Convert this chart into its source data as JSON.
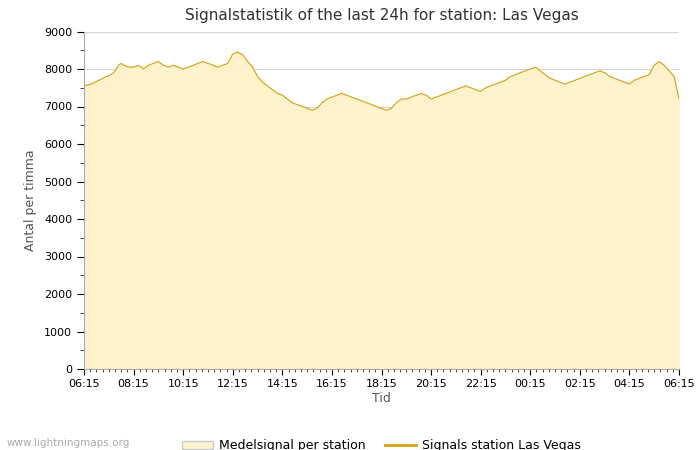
{
  "title": "Signalstatistik of the last 24h for station: Las Vegas",
  "ylabel": "Antal per timma",
  "xlabel": "Tid",
  "watermark": "www.lightningmaps.org",
  "legend_labels": [
    "Medelsignal per station",
    "Signals station Las Vegas"
  ],
  "fill_color": "#FFF3CC",
  "line_color": "#D4A017",
  "grid_color": "#CCCCCC",
  "bg_color": "#FFFFFF",
  "ylim": [
    0,
    9000
  ],
  "yticks": [
    0,
    1000,
    2000,
    3000,
    4000,
    5000,
    6000,
    7000,
    8000,
    9000
  ],
  "x_labels": [
    "06:15",
    "08:15",
    "10:15",
    "12:15",
    "14:15",
    "16:15",
    "18:15",
    "20:15",
    "22:15",
    "00:15",
    "02:15",
    "04:15",
    "06:15"
  ],
  "x_values": [
    0,
    2,
    4,
    6,
    8,
    10,
    12,
    14,
    16,
    18,
    20,
    22,
    24
  ],
  "signal_data": [
    [
      0,
      7550
    ],
    [
      0.3,
      7600
    ],
    [
      0.6,
      7700
    ],
    [
      0.9,
      7800
    ],
    [
      1.0,
      7820
    ],
    [
      1.2,
      7900
    ],
    [
      1.4,
      8100
    ],
    [
      1.5,
      8150
    ],
    [
      1.6,
      8100
    ],
    [
      1.8,
      8050
    ],
    [
      2.0,
      8050
    ],
    [
      2.2,
      8100
    ],
    [
      2.4,
      8000
    ],
    [
      2.6,
      8100
    ],
    [
      2.8,
      8150
    ],
    [
      3.0,
      8200
    ],
    [
      3.2,
      8100
    ],
    [
      3.4,
      8050
    ],
    [
      3.6,
      8100
    ],
    [
      3.8,
      8050
    ],
    [
      4.0,
      8000
    ],
    [
      4.2,
      8050
    ],
    [
      4.4,
      8100
    ],
    [
      4.6,
      8150
    ],
    [
      4.8,
      8200
    ],
    [
      5.0,
      8150
    ],
    [
      5.2,
      8100
    ],
    [
      5.4,
      8050
    ],
    [
      5.6,
      8100
    ],
    [
      5.8,
      8150
    ],
    [
      6.0,
      8400
    ],
    [
      6.2,
      8450
    ],
    [
      6.4,
      8380
    ],
    [
      6.6,
      8200
    ],
    [
      6.8,
      8050
    ],
    [
      7.0,
      7800
    ],
    [
      7.2,
      7650
    ],
    [
      7.4,
      7550
    ],
    [
      7.6,
      7450
    ],
    [
      7.8,
      7350
    ],
    [
      8.0,
      7300
    ],
    [
      8.2,
      7200
    ],
    [
      8.4,
      7100
    ],
    [
      8.6,
      7050
    ],
    [
      8.8,
      7000
    ],
    [
      9.0,
      6950
    ],
    [
      9.2,
      6900
    ],
    [
      9.4,
      6950
    ],
    [
      9.6,
      7100
    ],
    [
      9.8,
      7200
    ],
    [
      10.0,
      7250
    ],
    [
      10.2,
      7300
    ],
    [
      10.4,
      7350
    ],
    [
      10.6,
      7300
    ],
    [
      10.8,
      7250
    ],
    [
      11.0,
      7200
    ],
    [
      11.2,
      7150
    ],
    [
      11.4,
      7100
    ],
    [
      11.6,
      7050
    ],
    [
      11.8,
      7000
    ],
    [
      12.0,
      6950
    ],
    [
      12.2,
      6900
    ],
    [
      12.4,
      6950
    ],
    [
      12.6,
      7100
    ],
    [
      12.8,
      7200
    ],
    [
      13.0,
      7200
    ],
    [
      13.2,
      7250
    ],
    [
      13.4,
      7300
    ],
    [
      13.6,
      7350
    ],
    [
      13.8,
      7300
    ],
    [
      14.0,
      7200
    ],
    [
      14.2,
      7250
    ],
    [
      14.4,
      7300
    ],
    [
      14.6,
      7350
    ],
    [
      14.8,
      7400
    ],
    [
      15.0,
      7450
    ],
    [
      15.2,
      7500
    ],
    [
      15.4,
      7550
    ],
    [
      15.6,
      7500
    ],
    [
      15.8,
      7450
    ],
    [
      16.0,
      7400
    ],
    [
      16.2,
      7500
    ],
    [
      16.4,
      7550
    ],
    [
      16.6,
      7600
    ],
    [
      16.8,
      7650
    ],
    [
      17.0,
      7700
    ],
    [
      17.2,
      7800
    ],
    [
      17.4,
      7850
    ],
    [
      17.6,
      7900
    ],
    [
      17.8,
      7950
    ],
    [
      18.0,
      8000
    ],
    [
      18.2,
      8050
    ],
    [
      18.4,
      7950
    ],
    [
      18.6,
      7850
    ],
    [
      18.8,
      7750
    ],
    [
      19.0,
      7700
    ],
    [
      19.2,
      7650
    ],
    [
      19.4,
      7600
    ],
    [
      19.6,
      7650
    ],
    [
      19.8,
      7700
    ],
    [
      20.0,
      7750
    ],
    [
      20.2,
      7800
    ],
    [
      20.4,
      7850
    ],
    [
      20.6,
      7900
    ],
    [
      20.8,
      7950
    ],
    [
      21.0,
      7900
    ],
    [
      21.2,
      7800
    ],
    [
      21.4,
      7750
    ],
    [
      21.6,
      7700
    ],
    [
      21.8,
      7650
    ],
    [
      22.0,
      7600
    ],
    [
      22.2,
      7700
    ],
    [
      22.4,
      7750
    ],
    [
      22.6,
      7800
    ],
    [
      22.8,
      7850
    ],
    [
      23.0,
      8100
    ],
    [
      23.2,
      8200
    ],
    [
      23.4,
      8100
    ],
    [
      23.6,
      7950
    ],
    [
      23.8,
      7800
    ],
    [
      24.0,
      7200
    ]
  ]
}
